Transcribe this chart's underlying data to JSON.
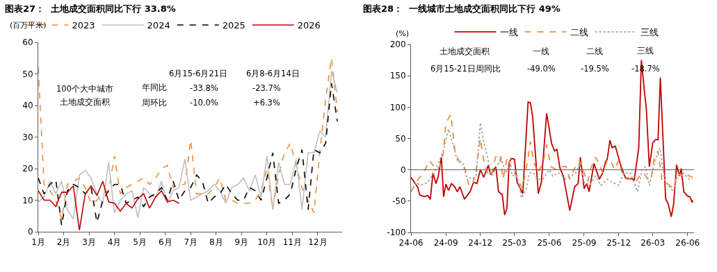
{
  "chart_data": [
    {
      "type": "line",
      "title": "图表27：  土地成交面积同比下行 33.8%",
      "ylabel": "(百万平米)",
      "xlim": [
        1,
        12.96
      ],
      "xticks": [
        {
          "value": 1,
          "label": "1月"
        },
        {
          "value": 2,
          "label": "2月"
        },
        {
          "value": 3,
          "label": "3月"
        },
        {
          "value": 4,
          "label": "4月"
        },
        {
          "value": 5,
          "label": "5月"
        },
        {
          "value": 6,
          "label": "6月"
        },
        {
          "value": 7,
          "label": "7月"
        },
        {
          "value": 8,
          "label": "8月"
        },
        {
          "value": 9,
          "label": "9月"
        },
        {
          "value": 10,
          "label": "10月"
        },
        {
          "value": 11,
          "label": "11月"
        },
        {
          "value": 12,
          "label": "12月"
        }
      ],
      "ylim": [
        0,
        60
      ],
      "yticks": [
        0,
        10,
        20,
        30,
        40,
        50,
        60
      ],
      "legend": "top",
      "marker": "none",
      "x": [
        1.0,
        1.23,
        1.46,
        1.69,
        1.92,
        2.15,
        2.38,
        2.62,
        2.85,
        3.08,
        3.31,
        3.54,
        3.77,
        4.0,
        4.23,
        4.46,
        4.69,
        4.92,
        5.15,
        5.38,
        5.62,
        5.85,
        6.08,
        6.31,
        6.54,
        6.77,
        7.0,
        7.23,
        7.46,
        7.69,
        7.92,
        8.15,
        8.38,
        8.62,
        8.85,
        9.08,
        9.31,
        9.54,
        9.77,
        10.0,
        10.23,
        10.46,
        10.69,
        10.92,
        11.15,
        11.38,
        11.62,
        11.85,
        12.08,
        12.31,
        12.54,
        12.77
      ],
      "series": [
        {
          "name": "2023",
          "color": "#f28c3b",
          "line_style": "dashed",
          "values": [
            52,
            15,
            13,
            10,
            4,
            15,
            16,
            17,
            14,
            9,
            10,
            12,
            13,
            24,
            12,
            14,
            15,
            16,
            17,
            15,
            17,
            20,
            21,
            14,
            15,
            15,
            29,
            12,
            12,
            12,
            14,
            17,
            10,
            10,
            9,
            9,
            9,
            10,
            13,
            20,
            7,
            18,
            25,
            28,
            21,
            14,
            10,
            6,
            25,
            42,
            55,
            38
          ]
        },
        {
          "name": "2024",
          "color": "#bfbfbf",
          "line_style": "solid",
          "values": [
            9.5,
            11,
            16,
            12,
            16,
            7,
            4,
            18,
            19.5,
            17,
            12,
            9,
            22,
            6,
            10,
            12,
            13,
            4.5,
            14,
            12,
            11,
            16,
            9,
            13,
            14,
            23,
            10,
            11,
            12,
            13,
            15,
            13,
            9,
            14,
            15,
            17,
            13,
            18,
            11,
            24,
            7,
            22,
            15,
            15,
            23,
            7,
            25,
            25,
            32,
            30,
            51,
            44
          ]
        },
        {
          "name": "2025",
          "color": "#000000",
          "line_style": "dashed",
          "values": [
            17,
            12,
            15,
            16.5,
            2,
            13,
            15,
            14,
            12,
            14,
            3,
            10,
            13,
            15,
            15,
            9,
            10,
            11,
            8,
            11,
            12,
            14,
            10,
            16,
            10,
            13,
            14,
            18,
            16,
            9,
            11,
            12,
            15,
            12,
            10,
            10,
            14,
            13,
            10,
            17,
            25,
            9,
            10,
            12,
            20,
            26,
            7,
            26,
            25,
            28,
            47,
            35
          ]
        },
        {
          "name": "2026",
          "color": "#c00000",
          "line_style": "solid",
          "values": [
            13,
            10,
            10,
            8,
            12.5,
            12.5,
            14.5,
            0.5,
            12,
            14.5,
            11.5,
            16,
            9.5,
            9,
            6.5,
            9,
            7.5,
            10.5,
            12,
            7.5,
            11,
            13,
            9.5,
            10,
            9,
            null,
            null,
            null,
            null,
            null,
            null,
            null,
            null,
            null,
            null,
            null,
            null,
            null,
            null,
            null,
            null,
            null,
            null,
            null,
            null,
            null,
            null,
            null,
            null,
            null,
            null,
            null
          ]
        }
      ],
      "annotations": [
        "6月15-6月21日",
        "6月8-6月14日",
        "100个大中城市",
        "土地成交面积",
        "年同比",
        "-33.8%",
        "-23.7%",
        "周环比",
        "-10.0%",
        "+6.3%"
      ]
    },
    {
      "type": "line",
      "title": "图表28：  一线城市土地成交面积同比下行 49%",
      "ylabel": "(%)",
      "xlim": [
        "2024-06-01",
        "2026-06-18"
      ],
      "xticks": [
        {
          "value": "2024-06-01",
          "label": "24-06"
        },
        {
          "value": "2024-09-01",
          "label": "24-09"
        },
        {
          "value": "2024-12-01",
          "label": "24-12"
        },
        {
          "value": "2025-03-01",
          "label": "25-03"
        },
        {
          "value": "2025-06-01",
          "label": "25-06"
        },
        {
          "value": "2025-09-01",
          "label": "25-09"
        },
        {
          "value": "2025-12-01",
          "label": "25-12"
        },
        {
          "value": "2026-03-01",
          "label": "26-03"
        },
        {
          "value": "2026-06-01",
          "label": "26-06"
        }
      ],
      "ylim": [
        -100,
        200
      ],
      "yticks": [
        -100,
        -50,
        0,
        50,
        100,
        150,
        200
      ],
      "legend": "top",
      "marker": "none",
      "ref_lines": [
        {
          "axis": "y",
          "value": 0,
          "color": "#595959"
        }
      ],
      "series": [
        {
          "name": "一线",
          "color": "#c00000",
          "line_style": "solid",
          "x": [
            "2024-06-01",
            "2024-06-12",
            "2024-06-19",
            "2024-06-24",
            "2024-07-06",
            "2024-07-15",
            "2024-07-22",
            "2024-07-29",
            "2024-08-06",
            "2024-08-12",
            "2024-08-20",
            "2024-08-26",
            "2024-09-01",
            "2024-09-08",
            "2024-09-16",
            "2024-09-24",
            "2024-10-01",
            "2024-10-08",
            "2024-10-20",
            "2024-11-04",
            "2024-11-13",
            "2024-11-22",
            "2024-12-01",
            "2024-12-10",
            "2024-12-22",
            "2024-12-28",
            "2025-01-11",
            "2025-01-18",
            "2025-01-28",
            "2025-02-03",
            "2025-02-09",
            "2025-02-15",
            "2025-02-21",
            "2025-03-01",
            "2025-03-08",
            "2025-03-23",
            "2025-04-06",
            "2025-04-12",
            "2025-04-18",
            "2025-05-03",
            "2025-05-11",
            "2025-05-25",
            "2025-06-07",
            "2025-06-15",
            "2025-06-21",
            "2025-06-29",
            "2025-07-08",
            "2025-07-25",
            "2025-08-07",
            "2025-08-16",
            "2025-08-22",
            "2025-09-01",
            "2025-09-08",
            "2025-09-14",
            "2025-09-27",
            "2025-10-11",
            "2025-10-20",
            "2025-10-27",
            "2025-11-01",
            "2025-11-08",
            "2025-11-14",
            "2025-11-22",
            "2025-12-07",
            "2025-12-19",
            "2025-12-28",
            "2026-01-05",
            "2026-01-11",
            "2026-01-23",
            "2026-01-30",
            "2026-02-07",
            "2026-02-12",
            "2026-02-20",
            "2026-03-01",
            "2026-03-08",
            "2026-03-15",
            "2026-03-21",
            "2026-04-04",
            "2026-04-11",
            "2026-04-19",
            "2026-04-25",
            "2026-05-03",
            "2026-05-10",
            "2026-05-15",
            "2026-05-22",
            "2026-06-01",
            "2026-06-07",
            "2026-06-13",
            "2026-06-15"
          ],
          "values": [
            -12,
            -22,
            -28,
            -40,
            -43,
            -41,
            -47,
            -5,
            -22,
            -10,
            20,
            -43,
            -23,
            -33,
            -22,
            -27,
            -35,
            -27,
            -47,
            -35,
            -20,
            -22,
            0,
            -12,
            7,
            -8,
            5,
            -35,
            -40,
            -72,
            -62,
            12,
            18,
            17,
            -20,
            -38,
            108,
            107,
            85,
            -38,
            -20,
            90,
            42,
            30,
            33,
            3,
            -10,
            -65,
            -27,
            -22,
            20,
            -30,
            -22,
            -35,
            10,
            -15,
            -5,
            12,
            17,
            47,
            35,
            38,
            6,
            -13,
            -14,
            -14,
            -17,
            35,
            175,
            125,
            98,
            5,
            43,
            48,
            48,
            147,
            -46,
            -55,
            -75,
            -55,
            8,
            -10,
            2,
            -35,
            -42,
            -43,
            -52,
            -49
          ]
        },
        {
          "name": "二线",
          "color": "#f28c3b",
          "line_style": "dashed",
          "x": [
            "2024-06-01",
            "2024-06-20",
            "2024-07-05",
            "2024-07-15",
            "2024-07-20",
            "2024-07-28",
            "2024-08-08",
            "2024-08-15",
            "2024-08-25",
            "2024-09-01",
            "2024-09-08",
            "2024-09-14",
            "2024-09-25",
            "2024-10-08",
            "2024-10-20",
            "2024-11-01",
            "2024-11-10",
            "2024-11-20",
            "2024-12-01",
            "2024-12-10",
            "2024-12-20",
            "2024-12-30",
            "2025-01-10",
            "2025-01-22",
            "2025-01-30",
            "2025-02-10",
            "2025-02-20",
            "2025-03-01",
            "2025-03-10",
            "2025-03-22",
            "2025-04-05",
            "2025-04-12",
            "2025-04-20",
            "2025-05-01",
            "2025-05-15",
            "2025-05-25",
            "2025-06-05",
            "2025-06-20",
            "2025-07-05",
            "2025-07-15",
            "2025-07-25",
            "2025-08-05",
            "2025-08-20",
            "2025-09-01",
            "2025-09-10",
            "2025-09-20",
            "2025-10-01",
            "2025-10-10",
            "2025-10-20",
            "2025-11-01",
            "2025-11-10",
            "2025-11-20",
            "2025-12-01",
            "2025-12-10",
            "2025-12-22",
            "2026-01-01",
            "2026-01-15",
            "2026-01-25",
            "2026-02-05",
            "2026-02-15",
            "2026-02-25",
            "2026-03-05",
            "2026-03-15",
            "2026-03-25",
            "2026-04-05",
            "2026-04-15",
            "2026-04-25",
            "2026-05-05",
            "2026-05-15",
            "2026-05-25",
            "2026-06-05",
            "2026-06-15"
          ],
          "values": [
            -35,
            -15,
            -5,
            10,
            15,
            8,
            0,
            5,
            25,
            75,
            82,
            88,
            30,
            10,
            5,
            -25,
            -25,
            0,
            50,
            15,
            -5,
            -10,
            20,
            25,
            -15,
            20,
            5,
            -5,
            -15,
            -30,
            15,
            45,
            15,
            -5,
            10,
            40,
            5,
            0,
            5,
            5,
            -15,
            0,
            15,
            -5,
            -20,
            5,
            20,
            10,
            -5,
            15,
            15,
            0,
            15,
            -5,
            -15,
            -15,
            -20,
            -10,
            -5,
            -15,
            -15,
            20,
            30,
            -15,
            -20,
            -25,
            -30,
            -5,
            -10,
            -5,
            -10,
            -12
          ]
        },
        {
          "name": "三线",
          "color": "#a6a6a6",
          "line_style": "dotted",
          "x": [
            "2024-06-01",
            "2024-06-15",
            "2024-06-25",
            "2024-07-15",
            "2024-08-01",
            "2024-08-15",
            "2024-08-25",
            "2024-09-08",
            "2024-09-20",
            "2024-10-01",
            "2024-10-15",
            "2024-10-25",
            "2024-11-10",
            "2024-11-20",
            "2024-12-01",
            "2024-12-10",
            "2024-12-20",
            "2024-12-30",
            "2025-01-10",
            "2025-01-25",
            "2025-02-05",
            "2025-02-15",
            "2025-02-25",
            "2025-03-05",
            "2025-03-20",
            "2025-04-01",
            "2025-04-10",
            "2025-04-20",
            "2025-05-01",
            "2025-05-15",
            "2025-06-01",
            "2025-06-10",
            "2025-06-25",
            "2025-07-15",
            "2025-08-10",
            "2025-08-20",
            "2025-09-01",
            "2025-09-15",
            "2025-10-01",
            "2025-10-15",
            "2025-11-01",
            "2025-11-15",
            "2025-12-01",
            "2025-12-15",
            "2026-01-01",
            "2026-01-20",
            "2026-02-01",
            "2026-02-10",
            "2026-02-20",
            "2026-03-01",
            "2026-03-10",
            "2026-03-20",
            "2026-04-01",
            "2026-04-10",
            "2026-04-25",
            "2026-05-05",
            "2026-05-20",
            "2026-06-05",
            "2026-06-15"
          ],
          "values": [
            -35,
            -20,
            -25,
            -20,
            -5,
            15,
            30,
            65,
            40,
            15,
            12,
            -10,
            -15,
            -10,
            75,
            45,
            20,
            -10,
            0,
            20,
            -5,
            5,
            -10,
            0,
            -45,
            -30,
            -5,
            -5,
            -15,
            -15,
            0,
            -10,
            -5,
            -15,
            -5,
            10,
            -20,
            -25,
            -10,
            -25,
            -15,
            -20,
            -25,
            -5,
            -5,
            -35,
            0,
            5,
            -25,
            0,
            20,
            35,
            -15,
            -25,
            -35,
            -10,
            -5,
            -15,
            -15
          ]
        }
      ],
      "annotations": [
        "土地成交面积",
        "一线",
        "二线",
        "三线",
        "6月15-21日周同比",
        "-49.0%",
        "-19.5%",
        "-18.7%"
      ]
    }
  ]
}
